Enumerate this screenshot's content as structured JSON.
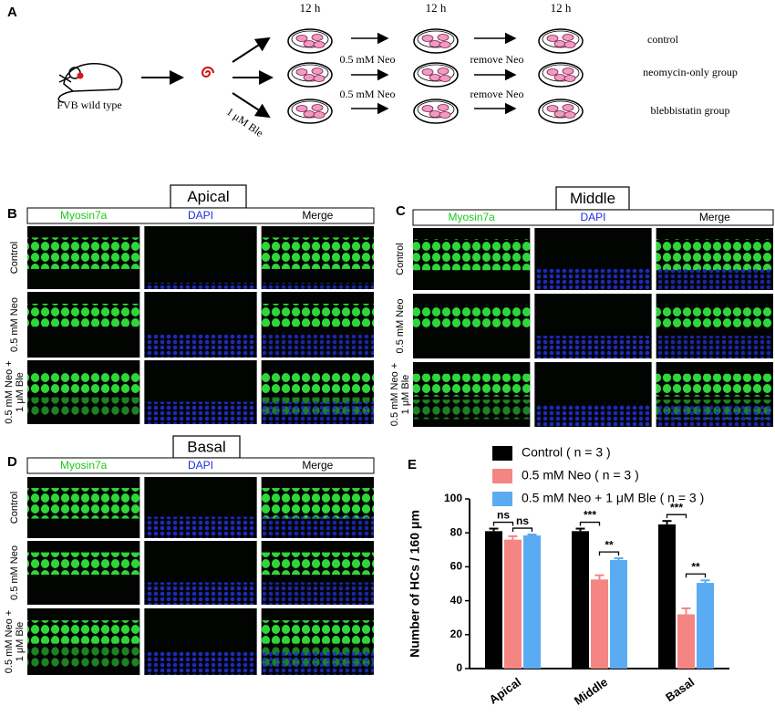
{
  "panel_labels": [
    "A",
    "B",
    "C",
    "D",
    "E"
  ],
  "schematic": {
    "mouse_label": "FVB wild type",
    "time_labels": [
      "12 h",
      "12 h",
      "12 h"
    ],
    "ble_label": "1 μM Ble",
    "step2_labels": [
      "0.5 mM Neo",
      "0.5 mM Neo"
    ],
    "step3_labels": [
      "remove Neo",
      "remove Neo"
    ],
    "group_labels": [
      "control",
      "neomycin-only group",
      "blebbistatin group"
    ]
  },
  "image_panels": [
    {
      "title": "Apical",
      "columns": [
        "Myosin7a",
        "DAPI",
        "Merge"
      ],
      "rows": [
        [
          "Control"
        ],
        [
          "0.5 mM Neo"
        ],
        [
          "0.5 mM Neo +",
          "1 μM Ble"
        ]
      ]
    },
    {
      "title": "Middle",
      "columns": [
        "Myosin7a",
        "DAPI",
        "Merge"
      ],
      "rows": [
        [
          "Control"
        ],
        [
          "0.5 mM Neo"
        ],
        [
          "0.5 mM Neo +",
          "1 μM Ble"
        ]
      ]
    },
    {
      "title": "Basal",
      "columns": [
        "Myosin7a",
        "DAPI",
        "Merge"
      ],
      "rows": [
        [
          "Control"
        ],
        [
          "0.5 mM Neo"
        ],
        [
          "0.5 mM Neo +",
          "1 μM Ble"
        ]
      ]
    }
  ],
  "chart_data": {
    "type": "bar",
    "y_label": "Number of HCs / 160 μm",
    "categories": [
      "Apical",
      "Middle",
      "Basal"
    ],
    "series": [
      {
        "name": "Control ( n = 3 )",
        "color": "#000000",
        "values": [
          81,
          81,
          85
        ],
        "errors": [
          1.5,
          1.5,
          2
        ]
      },
      {
        "name": "0.5 mM Neo ( n = 3 )",
        "color": "#f58582",
        "values": [
          76,
          52.5,
          32
        ],
        "errors": [
          2,
          2.5,
          3.5
        ]
      },
      {
        "name": "0.5 mM Neo + 1 μM Ble ( n = 3 )",
        "color": "#5aabf2",
        "values": [
          78.5,
          64,
          50.5
        ],
        "errors": [
          0.5,
          1,
          1.5
        ]
      }
    ],
    "significance": [
      [
        "ns",
        "ns"
      ],
      [
        "***",
        "**"
      ],
      [
        "***",
        "**"
      ]
    ],
    "ylim": [
      0,
      100
    ],
    "yticks": [
      0,
      20,
      40,
      60,
      80,
      100
    ],
    "legend": "top"
  }
}
